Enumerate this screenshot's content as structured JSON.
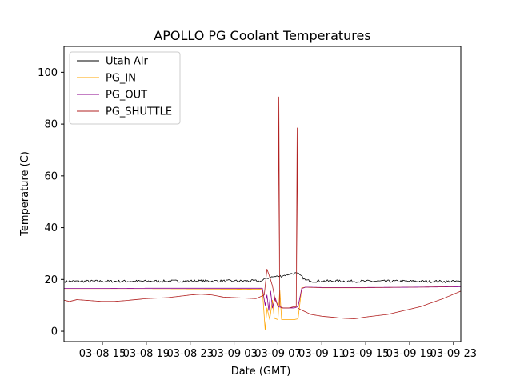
{
  "chart_data": {
    "type": "line",
    "title": "APOLLO PG Coolant Temperatures",
    "xlabel": "Date (GMT)",
    "ylabel": "Temperature (C)",
    "xlim": [
      "03-08 11:30",
      "03-09 23:40"
    ],
    "ylim": [
      -4,
      110
    ],
    "xticks": [
      {
        "at": "03-08 15:00",
        "label": "03-08 15"
      },
      {
        "at": "03-08 19:00",
        "label": "03-08 19"
      },
      {
        "at": "03-08 23:00",
        "label": "03-08 23"
      },
      {
        "at": "03-09 03:00",
        "label": "03-09 03"
      },
      {
        "at": "03-09 07:00",
        "label": "03-09 07"
      },
      {
        "at": "03-09 11:00",
        "label": "03-09 11"
      },
      {
        "at": "03-09 15:00",
        "label": "03-09 15"
      },
      {
        "at": "03-09 19:00",
        "label": "03-09 19"
      },
      {
        "at": "03-09 23:00",
        "label": "03-09 23"
      }
    ],
    "yticks": [
      0,
      20,
      40,
      60,
      80,
      100
    ],
    "grid": false,
    "legend": "upper-left",
    "series": [
      {
        "name": "Utah Air",
        "color": "#000000",
        "noise": 0.5,
        "x": [
          "03-08 11:30",
          "03-08 15:00",
          "03-08 19:00",
          "03-08 23:00",
          "03-09 03:00",
          "03-09 05:30",
          "03-09 06:00",
          "03-09 06:30",
          "03-09 07:00",
          "03-09 07:30",
          "03-09 08:00",
          "03-09 08:30",
          "03-09 09:00",
          "03-09 09:30",
          "03-09 10:00",
          "03-09 11:00",
          "03-09 15:00",
          "03-09 19:00",
          "03-09 23:40"
        ],
        "y": [
          19.3,
          19.3,
          19.3,
          19.4,
          19.4,
          19.4,
          20.5,
          21.0,
          21.2,
          21.5,
          22.0,
          22.5,
          21.8,
          19.8,
          19.3,
          19.4,
          19.3,
          19.3,
          19.2
        ]
      },
      {
        "name": "PG_IN",
        "color": "#ffa500",
        "noise": 0,
        "x": [
          "03-08 11:30",
          "03-08 15:00",
          "03-08 19:00",
          "03-08 23:00",
          "03-09 03:00",
          "03-09 05:35",
          "03-09 05:50",
          "03-09 06:00",
          "03-09 06:15",
          "03-09 06:30",
          "03-09 06:40",
          "03-09 07:00",
          "03-09 07:10",
          "03-09 07:20",
          "03-09 07:40",
          "03-09 08:00",
          "03-09 08:30",
          "03-09 08:50",
          "03-09 09:10",
          "03-09 09:30",
          "03-09 10:00",
          "03-09 11:00",
          "03-09 15:00",
          "03-09 19:00",
          "03-09 23:40"
        ],
        "y": [
          16.0,
          16.0,
          16.0,
          16.1,
          16.2,
          16.3,
          0.5,
          9.0,
          4.5,
          12.0,
          5.0,
          4.5,
          16.0,
          4.5,
          4.5,
          4.5,
          4.5,
          4.8,
          16.8,
          17.0,
          16.9,
          16.8,
          16.8,
          17.0,
          17.3
        ]
      },
      {
        "name": "PG_OUT",
        "color": "#8b008b",
        "noise": 0,
        "x": [
          "03-08 11:30",
          "03-08 15:00",
          "03-08 19:00",
          "03-08 23:00",
          "03-09 03:00",
          "03-09 05:35",
          "03-09 05:50",
          "03-09 06:00",
          "03-09 06:10",
          "03-09 06:20",
          "03-09 06:30",
          "03-09 06:45",
          "03-09 07:00",
          "03-09 07:30",
          "03-09 08:00",
          "03-09 08:30",
          "03-09 08:50",
          "03-09 09:10",
          "03-09 09:30",
          "03-09 10:00",
          "03-09 11:00",
          "03-09 15:00",
          "03-09 19:00",
          "03-09 23:40"
        ],
        "y": [
          16.5,
          16.5,
          16.6,
          16.6,
          16.6,
          16.6,
          10.0,
          14.0,
          8.0,
          15.5,
          9.0,
          13.0,
          9.5,
          9.0,
          9.0,
          9.0,
          9.5,
          16.5,
          17.0,
          17.0,
          16.9,
          16.9,
          17.0,
          17.2
        ]
      },
      {
        "name": "PG_SHUTTLE",
        "color": "#b22222",
        "noise": 0,
        "x": [
          "03-08 11:30",
          "03-08 12:00",
          "03-08 12:40",
          "03-08 14:00",
          "03-08 15:00",
          "03-08 16:00",
          "03-08 17:00",
          "03-08 19:00",
          "03-08 21:00",
          "03-08 23:00",
          "03-09 00:00",
          "03-09 01:00",
          "03-09 02:00",
          "03-09 03:00",
          "03-09 04:00",
          "03-09 05:00",
          "03-09 05:45",
          "03-09 06:00",
          "03-09 06:15",
          "03-09 06:30",
          "03-09 06:45",
          "03-09 07:00",
          "03-09 07:05",
          "03-09 07:10",
          "03-09 07:20",
          "03-09 08:00",
          "03-09 08:30",
          "03-09 08:40",
          "03-09 08:45",
          "03-09 08:50",
          "03-09 09:00",
          "03-09 09:30",
          "03-09 10:00",
          "03-09 11:00",
          "03-09 12:00",
          "03-09 13:00",
          "03-09 14:00",
          "03-09 15:00",
          "03-09 17:00",
          "03-09 19:00",
          "03-09 20:00",
          "03-09 21:00",
          "03-09 22:00",
          "03-09 23:40"
        ],
        "y": [
          12.0,
          11.5,
          12.2,
          11.8,
          11.5,
          11.5,
          11.8,
          12.6,
          13.0,
          14.0,
          14.3,
          14.0,
          13.2,
          13.0,
          12.8,
          12.6,
          14.0,
          24.0,
          21.0,
          17.5,
          12.0,
          10.0,
          90.5,
          10.0,
          9.0,
          9.0,
          9.5,
          9.5,
          78.5,
          9.0,
          8.5,
          7.5,
          6.5,
          5.8,
          5.4,
          5.0,
          4.8,
          5.5,
          6.5,
          8.5,
          9.5,
          11.0,
          12.5,
          15.5
        ]
      }
    ]
  }
}
